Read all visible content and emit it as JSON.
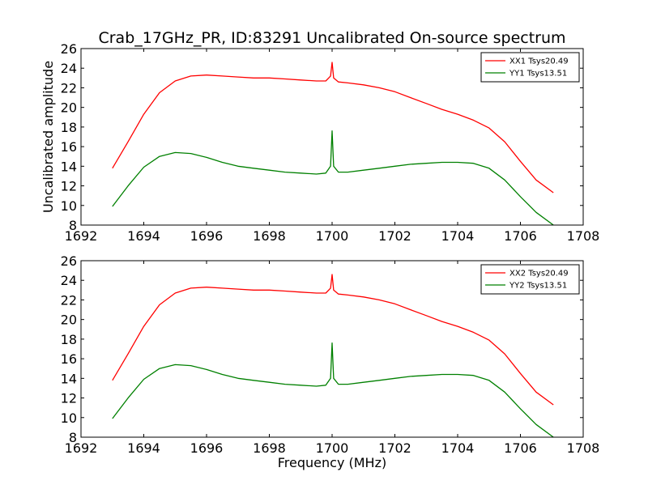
{
  "figure": {
    "title": "Crab_17GHz_PR, ID:83291 Uncalibrated On-source spectrum"
  },
  "chart_data": [
    {
      "type": "line",
      "title": "Crab_17GHz_PR, ID:83291 Uncalibrated On-source spectrum",
      "xlabel": "",
      "ylabel": "Uncalibrated amplitude",
      "xlim": [
        1692,
        1708
      ],
      "ylim": [
        8,
        26
      ],
      "xticks": [
        1692,
        1694,
        1696,
        1698,
        1700,
        1702,
        1704,
        1706,
        1708
      ],
      "yticks": [
        8,
        10,
        12,
        14,
        16,
        18,
        20,
        22,
        24,
        26
      ],
      "grid": false,
      "legend_position": "top-right",
      "series": [
        {
          "name": "XX1 Tsys20.49",
          "color": "#ff0000",
          "x": [
            1693.0,
            1693.5,
            1694.0,
            1694.5,
            1695.0,
            1695.5,
            1696.0,
            1696.5,
            1697.0,
            1697.5,
            1698.0,
            1698.5,
            1699.0,
            1699.5,
            1699.8,
            1699.95,
            1700.0,
            1700.05,
            1700.2,
            1700.5,
            1701.0,
            1701.5,
            1702.0,
            1702.5,
            1703.0,
            1703.5,
            1704.0,
            1704.5,
            1705.0,
            1705.5,
            1706.0,
            1706.5,
            1707.05
          ],
          "y": [
            13.8,
            16.5,
            19.3,
            21.5,
            22.7,
            23.2,
            23.3,
            23.2,
            23.1,
            23.0,
            23.0,
            22.9,
            22.8,
            22.7,
            22.7,
            23.2,
            24.6,
            23.0,
            22.6,
            22.5,
            22.3,
            22.0,
            21.6,
            21.0,
            20.4,
            19.8,
            19.3,
            18.7,
            17.9,
            16.5,
            14.5,
            12.6,
            11.3
          ]
        },
        {
          "name": "YY1 Tsys13.51",
          "color": "#008000",
          "x": [
            1693.0,
            1693.5,
            1694.0,
            1694.5,
            1695.0,
            1695.5,
            1696.0,
            1696.5,
            1697.0,
            1697.5,
            1698.0,
            1698.5,
            1699.0,
            1699.5,
            1699.8,
            1699.95,
            1700.0,
            1700.05,
            1700.2,
            1700.5,
            1701.0,
            1701.5,
            1702.0,
            1702.5,
            1703.0,
            1703.5,
            1704.0,
            1704.5,
            1705.0,
            1705.5,
            1706.0,
            1706.5,
            1707.05
          ],
          "y": [
            9.9,
            12.0,
            13.9,
            15.0,
            15.4,
            15.3,
            14.9,
            14.4,
            14.0,
            13.8,
            13.6,
            13.4,
            13.3,
            13.2,
            13.3,
            14.0,
            17.6,
            14.0,
            13.4,
            13.4,
            13.6,
            13.8,
            14.0,
            14.2,
            14.3,
            14.4,
            14.4,
            14.3,
            13.8,
            12.6,
            10.9,
            9.3,
            8.0
          ]
        }
      ]
    },
    {
      "type": "line",
      "title": "",
      "xlabel": "Frequency (MHz)",
      "ylabel": "",
      "xlim": [
        1692,
        1708
      ],
      "ylim": [
        8,
        26
      ],
      "xticks": [
        1692,
        1694,
        1696,
        1698,
        1700,
        1702,
        1704,
        1706,
        1708
      ],
      "yticks": [
        8,
        10,
        12,
        14,
        16,
        18,
        20,
        22,
        24,
        26
      ],
      "grid": false,
      "legend_position": "top-right",
      "series": [
        {
          "name": "XX2 Tsys20.49",
          "color": "#ff0000",
          "x": [
            1693.0,
            1693.5,
            1694.0,
            1694.5,
            1695.0,
            1695.5,
            1696.0,
            1696.5,
            1697.0,
            1697.5,
            1698.0,
            1698.5,
            1699.0,
            1699.5,
            1699.8,
            1699.95,
            1700.0,
            1700.05,
            1700.2,
            1700.5,
            1701.0,
            1701.5,
            1702.0,
            1702.5,
            1703.0,
            1703.5,
            1704.0,
            1704.5,
            1705.0,
            1705.5,
            1706.0,
            1706.5,
            1707.05
          ],
          "y": [
            13.8,
            16.5,
            19.3,
            21.5,
            22.7,
            23.2,
            23.3,
            23.2,
            23.1,
            23.0,
            23.0,
            22.9,
            22.8,
            22.7,
            22.7,
            23.2,
            24.6,
            23.0,
            22.6,
            22.5,
            22.3,
            22.0,
            21.6,
            21.0,
            20.4,
            19.8,
            19.3,
            18.7,
            17.9,
            16.5,
            14.5,
            12.6,
            11.3
          ]
        },
        {
          "name": "YY2 Tsys13.51",
          "color": "#008000",
          "x": [
            1693.0,
            1693.5,
            1694.0,
            1694.5,
            1695.0,
            1695.5,
            1696.0,
            1696.5,
            1697.0,
            1697.5,
            1698.0,
            1698.5,
            1699.0,
            1699.5,
            1699.8,
            1699.95,
            1700.0,
            1700.05,
            1700.2,
            1700.5,
            1701.0,
            1701.5,
            1702.0,
            1702.5,
            1703.0,
            1703.5,
            1704.0,
            1704.5,
            1705.0,
            1705.5,
            1706.0,
            1706.5,
            1707.05
          ],
          "y": [
            9.9,
            12.0,
            13.9,
            15.0,
            15.4,
            15.3,
            14.9,
            14.4,
            14.0,
            13.8,
            13.6,
            13.4,
            13.3,
            13.2,
            13.3,
            14.0,
            17.6,
            14.0,
            13.4,
            13.4,
            13.6,
            13.8,
            14.0,
            14.2,
            14.3,
            14.4,
            14.4,
            14.3,
            13.8,
            12.6,
            10.9,
            9.3,
            8.0
          ]
        }
      ]
    }
  ]
}
